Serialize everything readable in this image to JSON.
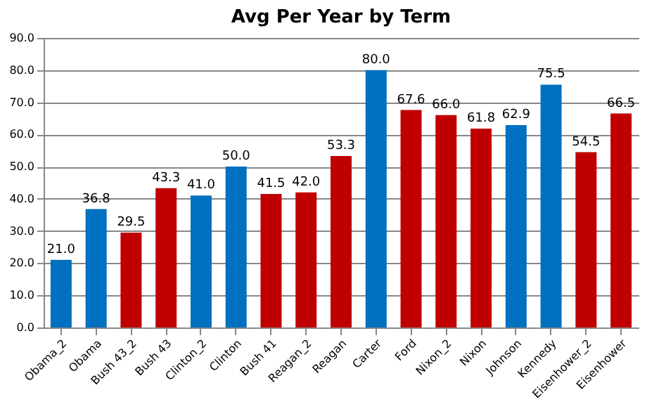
{
  "chart_data": {
    "type": "bar",
    "title": "Avg Per Year by Term",
    "categories": [
      "Obama_2",
      "Obama",
      "Bush 43_2",
      "Bush 43",
      "Clinton_2",
      "Clinton",
      "Bush 41",
      "Reagan_2",
      "Reagan",
      "Carter",
      "Ford",
      "Nixon_2",
      "Nixon",
      "Johnson",
      "Kennedy",
      "Eisenhower_2",
      "Eisenhower"
    ],
    "values": [
      21.0,
      36.8,
      29.5,
      43.3,
      41.0,
      50.0,
      41.5,
      42.0,
      53.3,
      80.0,
      67.6,
      66.0,
      61.8,
      62.9,
      75.5,
      54.5,
      66.5
    ],
    "value_labels": [
      "21.0",
      "36.8",
      "29.5",
      "43.3",
      "41.0",
      "50.0",
      "41.5",
      "42.0",
      "53.3",
      "80.0",
      "67.6",
      "66.0",
      "61.8",
      "62.9",
      "75.5",
      "54.5",
      "66.5"
    ],
    "colors": [
      "#0070c0",
      "#0070c0",
      "#c00000",
      "#c00000",
      "#0070c0",
      "#0070c0",
      "#c00000",
      "#c00000",
      "#c00000",
      "#0070c0",
      "#c00000",
      "#c00000",
      "#c00000",
      "#0070c0",
      "#0070c0",
      "#c00000",
      "#c00000"
    ],
    "ylim": [
      0,
      90
    ],
    "yticks": [
      {
        "value": 0,
        "label": "0.0"
      },
      {
        "value": 10,
        "label": "10.0"
      },
      {
        "value": 20,
        "label": "20.0"
      },
      {
        "value": 30,
        "label": "30.0"
      },
      {
        "value": 40,
        "label": "40.0"
      },
      {
        "value": 50,
        "label": "50.0"
      },
      {
        "value": 60,
        "label": "60.0"
      },
      {
        "value": 70,
        "label": "70.0"
      },
      {
        "value": 80,
        "label": "80.0"
      },
      {
        "value": 90,
        "label": "90.0"
      }
    ],
    "grid": "y"
  }
}
